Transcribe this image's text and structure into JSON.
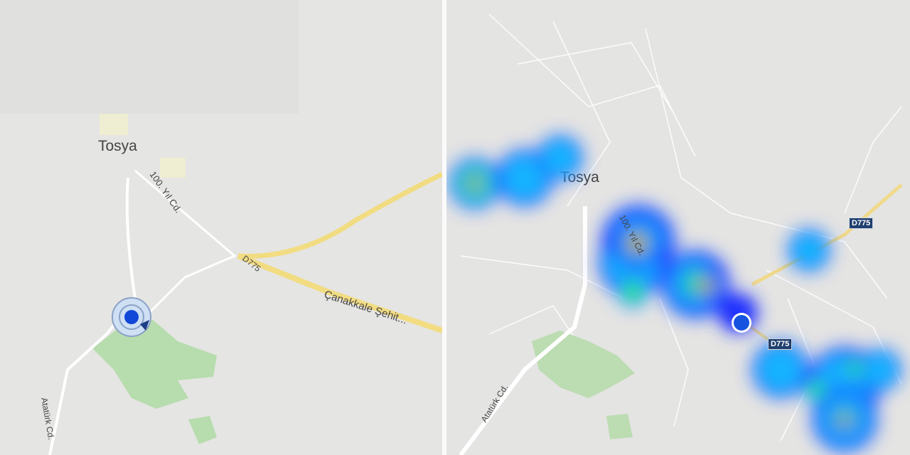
{
  "left_map": {
    "place_label": "Tosya",
    "road_labels": {
      "yil_cd": "100. Yıl Cd.",
      "highway": "D775",
      "canakkale": "Çanakkale Şehit...",
      "ataturk": "Atatürk Cd."
    },
    "location_marker": "current-location-icon"
  },
  "right_map": {
    "place_label": "Tosya",
    "road_labels": {
      "yil_cd": "100. Yıl Cd.",
      "ataturk": "Atatürk Cd."
    },
    "shields": [
      "D775",
      "D775"
    ],
    "heatmap_colors": [
      "#1a2fff",
      "#19b4ff",
      "#2cf24a",
      "#f0f51a",
      "#e60000"
    ],
    "location_marker": "current-location-icon"
  }
}
